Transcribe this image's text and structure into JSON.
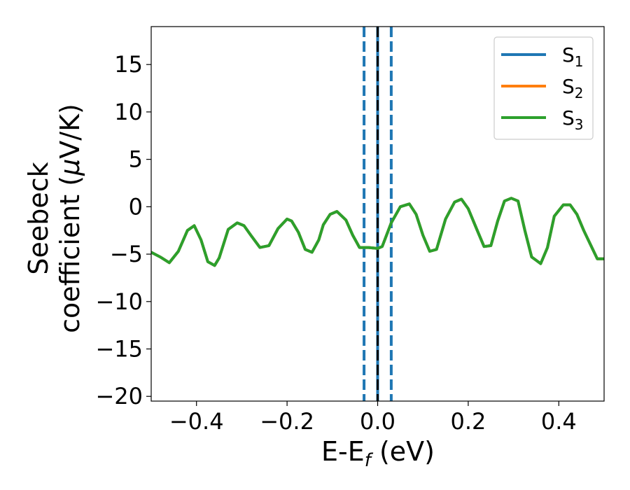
{
  "chart_data": {
    "type": "line",
    "xlabel": "E-E",
    "xlabel_sub": "f",
    "xlabel_unit": " (eV)",
    "ylabel_line1": "Seebeck",
    "ylabel_line2_pre": "coefficient  (",
    "ylabel_mu": "μ",
    "ylabel_line2_post": "V/K)",
    "xlim": [
      -0.5,
      0.5
    ],
    "ylim": [
      -20.5,
      19
    ],
    "x_ticks": [
      -0.4,
      -0.2,
      0.0,
      0.2,
      0.4
    ],
    "x_tick_labels": [
      "−0.4",
      "−0.2",
      "0.0",
      "0.2",
      "0.4"
    ],
    "y_ticks": [
      15,
      10,
      5,
      0,
      -5,
      -10,
      -15,
      -20
    ],
    "y_tick_labels": [
      "15",
      "10",
      "5",
      "0",
      "−5",
      "−10",
      "−15",
      "−20"
    ],
    "legend_position": "top-right",
    "grid": false,
    "vlines": [
      {
        "x": -0.03,
        "style": "dashed",
        "color": "#1f77b4"
      },
      {
        "x": 0.0,
        "style": "solid",
        "color": "#1f77b4"
      },
      {
        "x": 0.0,
        "style": "dashed",
        "color": "#000000"
      },
      {
        "x": 0.03,
        "style": "dashed",
        "color": "#1f77b4"
      }
    ],
    "series": [
      {
        "name": "S",
        "sub": "1",
        "color": "#1f77b4",
        "values_same_as": "S3"
      },
      {
        "name": "S",
        "sub": "2",
        "color": "#ff7f0e",
        "values_same_as": "S3"
      },
      {
        "name": "S",
        "sub": "3",
        "color": "#2ca02c",
        "x": [
          -0.5,
          -0.48,
          -0.46,
          -0.44,
          -0.42,
          -0.405,
          -0.39,
          -0.375,
          -0.36,
          -0.35,
          -0.33,
          -0.31,
          -0.295,
          -0.28,
          -0.26,
          -0.24,
          -0.22,
          -0.2,
          -0.19,
          -0.175,
          -0.16,
          -0.145,
          -0.13,
          -0.12,
          -0.105,
          -0.09,
          -0.07,
          -0.055,
          -0.04,
          -0.02,
          0.0,
          0.01,
          0.03,
          0.05,
          0.07,
          0.085,
          0.1,
          0.115,
          0.13,
          0.15,
          0.17,
          0.185,
          0.2,
          0.22,
          0.235,
          0.25,
          0.265,
          0.28,
          0.295,
          0.31,
          0.325,
          0.34,
          0.36,
          0.375,
          0.39,
          0.41,
          0.425,
          0.44,
          0.455,
          0.47,
          0.485,
          0.5
        ],
        "y": [
          -4.8,
          -5.3,
          -5.9,
          -4.7,
          -2.5,
          -2.0,
          -3.5,
          -5.8,
          -6.2,
          -5.4,
          -2.4,
          -1.7,
          -2.0,
          -3.0,
          -4.3,
          -4.1,
          -2.3,
          -1.3,
          -1.5,
          -2.7,
          -4.5,
          -4.8,
          -3.5,
          -1.9,
          -0.8,
          -0.5,
          -1.4,
          -3.0,
          -4.3,
          -4.3,
          -4.4,
          -4.2,
          -1.7,
          0.0,
          0.3,
          -0.8,
          -3.0,
          -4.7,
          -4.5,
          -1.3,
          0.5,
          0.8,
          -0.2,
          -2.5,
          -4.2,
          -4.1,
          -1.5,
          0.6,
          0.9,
          0.6,
          -2.5,
          -5.3,
          -6.0,
          -4.3,
          -1.0,
          0.2,
          0.2,
          -0.8,
          -2.5,
          -4.0,
          -5.5,
          -5.5
        ]
      }
    ]
  }
}
